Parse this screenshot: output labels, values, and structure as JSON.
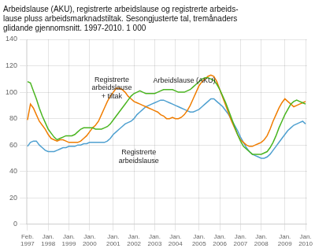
{
  "chart_data": {
    "type": "line",
    "title": "Arbeidslause (AKU), registrerte arbeidslause og registrerte arbeids-\nlause pluss arbeidsmarknadstiltak. Sesongjusterte tal, tremånaders\nglidande gjennomsnitt. 1997-2010. 1 000",
    "categories": [
      "Feb.\n1997",
      null,
      null,
      null,
      null,
      null,
      null,
      "Jan.\n1998",
      null,
      null,
      null,
      null,
      null,
      null,
      "Jan.\n1999",
      null,
      null,
      null,
      null,
      null,
      null,
      "Jan.\n2000",
      null,
      null,
      null,
      null,
      null,
      null,
      null,
      "Jan.\n2001",
      null,
      null,
      null,
      null,
      null,
      null,
      "Jan.\n2002",
      null,
      null,
      null,
      null,
      null,
      null,
      "Jan.\n2003",
      null,
      null,
      null,
      null,
      null,
      null,
      "Jan.\n2004",
      null,
      null,
      null,
      null,
      null,
      null,
      null,
      "Jan.\n2005",
      null,
      null,
      null,
      null,
      null,
      null,
      "Jan.\n2006",
      null,
      null,
      null,
      null,
      null,
      null,
      "Jan.\n2007",
      null,
      null,
      null,
      null,
      null,
      null,
      "Jan.\n2008",
      null,
      null,
      null,
      null,
      null,
      null,
      null,
      "Jan.\n2009",
      null,
      null,
      null,
      null,
      null,
      null,
      "Jan.\n2010"
    ],
    "series": [
      {
        "color": "#4ab520",
        "values": [
          108,
          107,
          101,
          95,
          88,
          82,
          77,
          72,
          69,
          66,
          64,
          65,
          66,
          67,
          67,
          67,
          68,
          70,
          72,
          73,
          73,
          73,
          73,
          72,
          72,
          72,
          73,
          74,
          76,
          79,
          82,
          85,
          88,
          91,
          94,
          97,
          99,
          100,
          101,
          100,
          99,
          99,
          99,
          99,
          100,
          101,
          102,
          102,
          102,
          102,
          101,
          100,
          100,
          100,
          101,
          102,
          104,
          106,
          108,
          110,
          111,
          111,
          110,
          109,
          106,
          102,
          97,
          92,
          86,
          80,
          74,
          68,
          63,
          59,
          57,
          55,
          53,
          53,
          53,
          53,
          54,
          55,
          58,
          62,
          67,
          73,
          78,
          83,
          87,
          91,
          93,
          94,
          93,
          92,
          91
        ]
      },
      {
        "color": "#f07d00",
        "values": [
          79,
          91,
          88,
          83,
          78,
          75,
          72,
          68,
          65,
          64,
          63,
          64,
          64,
          63,
          62,
          62,
          62,
          62,
          63,
          65,
          67,
          70,
          73,
          75,
          78,
          83,
          88,
          93,
          97,
          100,
          103,
          103,
          102,
          100,
          97,
          95,
          93,
          92,
          91,
          90,
          89,
          88,
          87,
          86,
          85,
          83,
          82,
          80,
          80,
          81,
          80,
          80,
          81,
          83,
          86,
          90,
          95,
          100,
          105,
          108,
          110,
          112,
          113,
          112,
          108,
          102,
          96,
          90,
          84,
          78,
          73,
          68,
          64,
          62,
          60,
          59,
          59,
          60,
          61,
          62,
          64,
          67,
          72,
          78,
          83,
          88,
          92,
          95,
          93,
          91,
          89,
          90,
          91,
          92,
          93
        ]
      },
      {
        "color": "#4fa0d0",
        "values": [
          59,
          62,
          63,
          63,
          60,
          58,
          56,
          55,
          55,
          55,
          56,
          57,
          58,
          58,
          59,
          59,
          59,
          60,
          60,
          61,
          61,
          62,
          62,
          62,
          62,
          62,
          62,
          63,
          65,
          68,
          70,
          72,
          74,
          76,
          77,
          78,
          80,
          83,
          85,
          87,
          89,
          90,
          91,
          92,
          93,
          94,
          94,
          93,
          92,
          91,
          90,
          89,
          88,
          87,
          86,
          85,
          85,
          86,
          87,
          89,
          91,
          93,
          95,
          95,
          93,
          91,
          89,
          86,
          83,
          79,
          75,
          71,
          66,
          62,
          58,
          55,
          53,
          52,
          51,
          50,
          50,
          51,
          53,
          56,
          59,
          62,
          65,
          68,
          71,
          73,
          75,
          76,
          77,
          78,
          76
        ]
      }
    ],
    "ylim": [
      0,
      140
    ],
    "yticks": [
      0,
      20,
      40,
      60,
      80,
      100,
      120,
      140
    ],
    "grid": true,
    "annotations": [
      {
        "text": "Registrerte\narbeidslause\n+ tiltak",
        "x": 28.5,
        "y": 112
      },
      {
        "text": "Arbeidslause (AKU)",
        "x": 42.45,
        "y": 105
      },
      {
        "text": "Registrerte\narbeidslause",
        "x": 37.6,
        "y": 57
      }
    ]
  }
}
